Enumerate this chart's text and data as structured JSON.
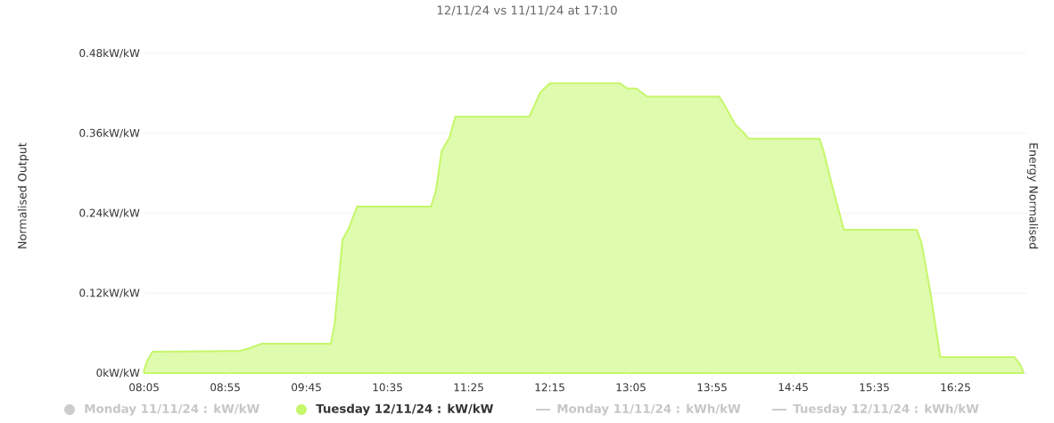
{
  "chart_data": {
    "type": "area",
    "title": "12/11/24 vs 11/11/24 at 17:10",
    "ylabel": "Normalised Output",
    "y2label": "Energy Normalised",
    "xlim": [
      8.083,
      17.15
    ],
    "ylim": [
      0,
      0.48
    ],
    "grid": "y",
    "legend": "bottom",
    "xticks": [
      {
        "value": 8.0833,
        "label": "08:05"
      },
      {
        "value": 8.9167,
        "label": "08:55"
      },
      {
        "value": 9.75,
        "label": "09:45"
      },
      {
        "value": 10.5833,
        "label": "10:35"
      },
      {
        "value": 11.4167,
        "label": "11:25"
      },
      {
        "value": 12.25,
        "label": "12:15"
      },
      {
        "value": 13.0833,
        "label": "13:05"
      },
      {
        "value": 13.9167,
        "label": "13:55"
      },
      {
        "value": 14.75,
        "label": "14:45"
      },
      {
        "value": 15.5833,
        "label": "15:35"
      },
      {
        "value": 16.4167,
        "label": "16:25"
      }
    ],
    "yticks": [
      {
        "value": 0,
        "label": "0kW/kW"
      },
      {
        "value": 0.12,
        "label": "0.12kW/kW"
      },
      {
        "value": 0.24,
        "label": "0.24kW/kW"
      },
      {
        "value": 0.36,
        "label": "0.36kW/kW"
      },
      {
        "value": 0.48,
        "label": "0.48kW/kW"
      }
    ],
    "series": [
      {
        "name": "Monday 11/11/24 : kW/kW",
        "color": "#cccccc"
      },
      {
        "name": "Tuesday 12/11/24 : kW/kW",
        "color": "#c5f76a",
        "x": [
          8.083,
          8.12,
          8.17,
          9.06,
          9.16,
          9.29,
          10.0,
          10.04,
          10.12,
          10.19,
          10.27,
          11.03,
          11.08,
          11.14,
          11.22,
          11.28,
          12.04,
          12.09,
          12.15,
          12.25,
          12.97,
          13.05,
          13.14,
          13.25,
          13.99,
          14.05,
          14.15,
          14.24,
          14.29,
          15.02,
          15.06,
          15.15,
          15.27,
          16.02,
          16.07,
          16.16,
          16.26,
          17.02,
          17.08,
          17.11
        ],
        "values": [
          0.005,
          0.02,
          0.032,
          0.033,
          0.037,
          0.044,
          0.044,
          0.074,
          0.2,
          0.219,
          0.25,
          0.25,
          0.274,
          0.334,
          0.354,
          0.385,
          0.385,
          0.401,
          0.421,
          0.435,
          0.435,
          0.427,
          0.427,
          0.415,
          0.415,
          0.401,
          0.374,
          0.361,
          0.352,
          0.352,
          0.334,
          0.281,
          0.215,
          0.215,
          0.194,
          0.12,
          0.024,
          0.024,
          0.013,
          0.003
        ]
      },
      {
        "name": "Monday 11/11/24 : kWh/kW",
        "type": "line",
        "color": "#cccccc"
      },
      {
        "name": "Tuesday 12/11/24 : kWh/kW",
        "type": "line",
        "color": "#cccccc"
      }
    ]
  }
}
